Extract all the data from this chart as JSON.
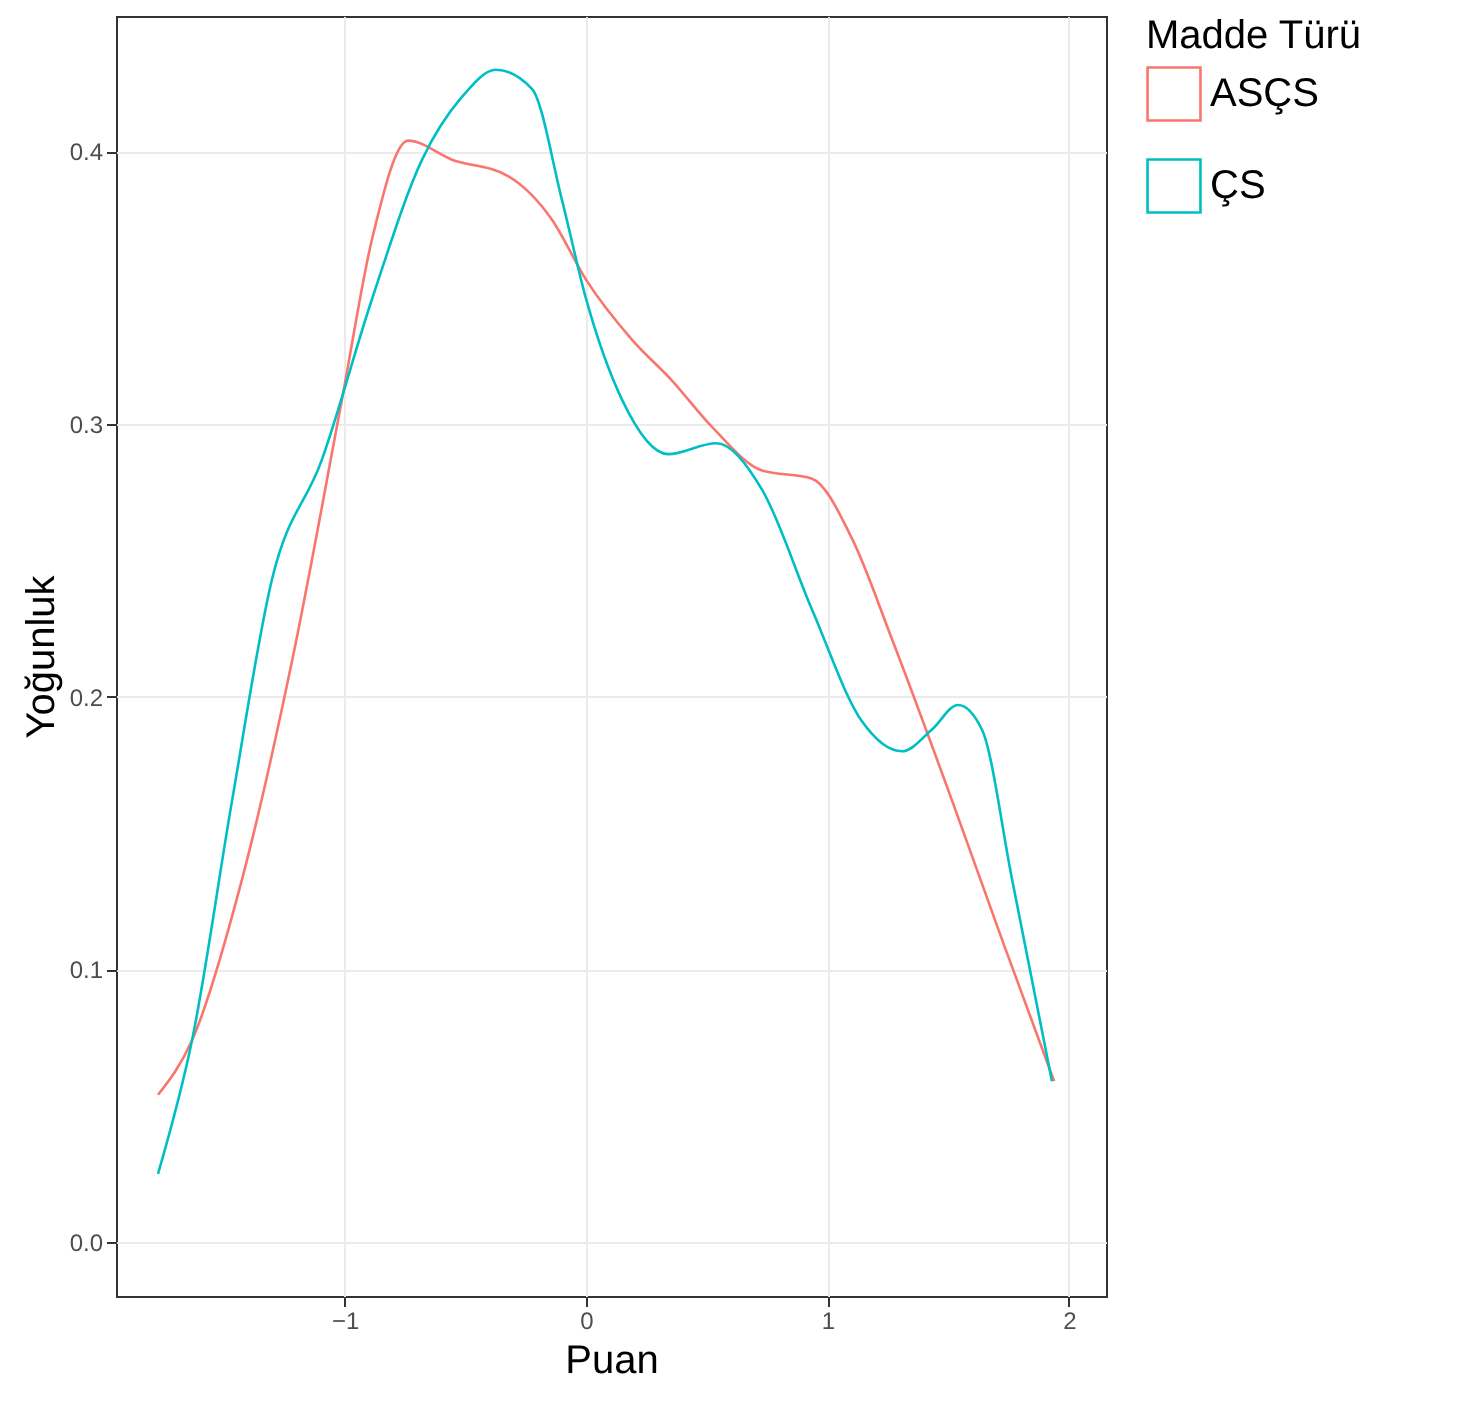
{
  "chart_data": {
    "type": "line",
    "xlabel": "Puan",
    "ylabel": "Yoğunluk",
    "legend_title": "Madde Türü",
    "legend": "right",
    "grid": true,
    "marker": "none",
    "line_style": "solid",
    "xlim": [
      -1.947,
      2.154
    ],
    "ylim": [
      -0.0198,
      0.4497
    ],
    "xticks": [
      -1,
      0,
      1,
      2
    ],
    "yticks": [
      {
        "value": 0,
        "label": "0.0"
      },
      0.1,
      0.2,
      0.3,
      0.4
    ],
    "series": [
      {
        "name": "ASÇS",
        "color": "#f8766d",
        "x": [
          -1.773,
          -1.632,
          -1.425,
          -1.218,
          -1.011,
          -0.886,
          -0.737,
          -0.555,
          -0.323,
          -0.141,
          0,
          0.19,
          0.356,
          0.522,
          0.729,
          0.936,
          1.102,
          1.268,
          1.516,
          1.723,
          1.939
        ],
        "values": [
          0.054,
          0.074,
          0.133,
          0.213,
          0.309,
          0.368,
          0.404,
          0.397,
          0.391,
          0.375,
          0.353,
          0.331,
          0.316,
          0.299,
          0.283,
          0.28,
          0.258,
          0.221,
          0.162,
          0.111,
          0.059
        ]
      },
      {
        "name": "ÇS",
        "color": "#00bfc4",
        "x": [
          -1.773,
          -1.632,
          -1.466,
          -1.301,
          -1.094,
          -0.886,
          -0.679,
          -0.514,
          -0.373,
          -0.224,
          -0.099,
          0,
          0.149,
          0.34,
          0.539,
          0.729,
          0.936,
          1.143,
          1.309,
          1.433,
          1.541,
          1.64,
          1.765,
          1.93
        ],
        "values": [
          0.025,
          0.074,
          0.162,
          0.243,
          0.287,
          0.346,
          0.397,
          0.42,
          0.43,
          0.423,
          0.382,
          0.346,
          0.309,
          0.289,
          0.293,
          0.276,
          0.232,
          0.191,
          0.18,
          0.188,
          0.197,
          0.188,
          0.133,
          0.059
        ]
      }
    ]
  }
}
